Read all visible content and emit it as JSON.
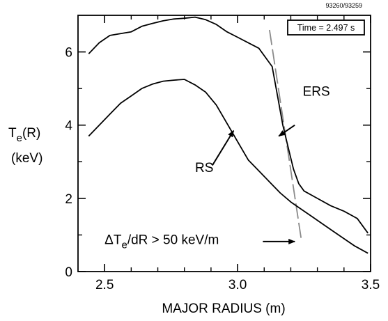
{
  "figure_id": "93260/93259",
  "time_box": {
    "label": "Time = 2.497 s"
  },
  "chart_data": {
    "type": "line",
    "xlabel": "MAJOR RADIUS (m)",
    "ylabel_main": "T",
    "ylabel_sub": "e",
    "ylabel_tail": "(R)",
    "ylabel_unit": "(keV)",
    "xlim": [
      2.4,
      3.5
    ],
    "ylim": [
      0,
      7.0
    ],
    "x_ticks": [
      {
        "value": 2.5,
        "label": "2.5"
      },
      {
        "value": 3.0,
        "label": "3.0"
      },
      {
        "value": 3.5,
        "label": "3.5"
      }
    ],
    "x_minor_ticks": [
      2.6,
      2.7,
      2.8,
      2.9,
      3.1,
      3.2,
      3.3,
      3.4
    ],
    "y_ticks": [
      {
        "value": 0,
        "label": "0"
      },
      {
        "value": 2,
        "label": "2"
      },
      {
        "value": 4,
        "label": "4"
      },
      {
        "value": 6,
        "label": "6"
      }
    ],
    "y_minor_ticks": [
      1,
      3,
      5
    ],
    "series": [
      {
        "name": "ERS",
        "x": [
          2.44,
          2.48,
          2.52,
          2.56,
          2.6,
          2.64,
          2.68,
          2.72,
          2.76,
          2.8,
          2.84,
          2.88,
          2.92,
          2.96,
          3.0,
          3.04,
          3.08,
          3.13,
          3.15,
          3.17,
          3.19,
          3.21,
          3.23,
          3.25,
          3.3,
          3.35,
          3.4,
          3.45,
          3.49
        ],
        "y": [
          5.95,
          6.25,
          6.45,
          6.5,
          6.55,
          6.7,
          6.78,
          6.85,
          6.9,
          6.92,
          6.95,
          6.88,
          6.75,
          6.55,
          6.4,
          6.25,
          6.1,
          5.6,
          4.8,
          4.0,
          3.4,
          2.8,
          2.4,
          2.2,
          2.0,
          1.8,
          1.65,
          1.45,
          1.05
        ]
      },
      {
        "name": "RS",
        "x": [
          2.44,
          2.48,
          2.52,
          2.56,
          2.6,
          2.64,
          2.68,
          2.72,
          2.76,
          2.8,
          2.84,
          2.88,
          2.92,
          2.96,
          3.0,
          3.04,
          3.08,
          3.12,
          3.16,
          3.2,
          3.24,
          3.28,
          3.32,
          3.36,
          3.4,
          3.44,
          3.49
        ],
        "y": [
          3.7,
          4.0,
          4.3,
          4.6,
          4.8,
          5.0,
          5.12,
          5.2,
          5.23,
          5.25,
          5.1,
          4.9,
          4.55,
          4.05,
          3.55,
          3.05,
          2.75,
          2.45,
          2.15,
          1.9,
          1.7,
          1.5,
          1.3,
          1.1,
          0.9,
          0.7,
          0.5
        ]
      }
    ],
    "gradient_line": {
      "x": [
        3.12,
        3.24
      ],
      "y": [
        6.6,
        0.85
      ]
    },
    "annotations": [
      {
        "id": "ers",
        "text": "ERS",
        "text_x": 3.245,
        "text_y": 4.8,
        "arrow_from": [
          3.215,
          4.0
        ],
        "arrow_to": [
          3.155,
          3.7
        ]
      },
      {
        "id": "rs",
        "text": "RS",
        "text_x": 2.84,
        "text_y": 2.72,
        "arrow_from": [
          2.905,
          2.9
        ],
        "arrow_to": [
          2.985,
          3.85
        ]
      },
      {
        "id": "gradient",
        "text_main": "ΔT",
        "text_sub": "e",
        "text_tail": "/dR > 50 keV/m",
        "text_x": 2.5,
        "text_y": 0.75,
        "arrow_from": [
          3.095,
          0.82
        ],
        "arrow_to": [
          3.215,
          0.82
        ]
      }
    ]
  }
}
